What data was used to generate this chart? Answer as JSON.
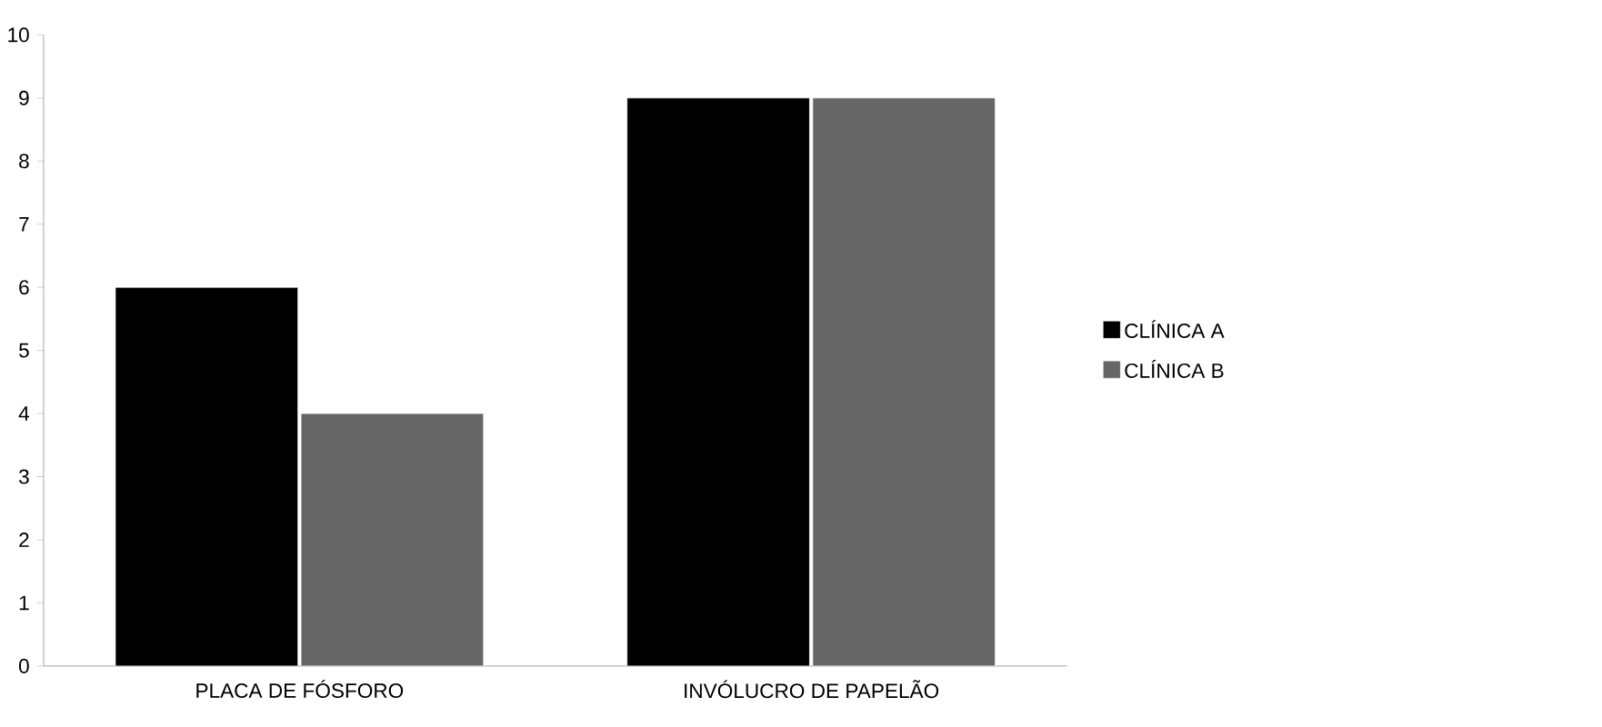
{
  "chart_data": {
    "type": "bar",
    "categories": [
      "PLACA DE FÓSFORO",
      "INVÓLUCRO DE PAPELÃO"
    ],
    "series": [
      {
        "name": "CLÍNICA  A",
        "color": "#000000",
        "values": [
          6,
          9
        ]
      },
      {
        "name": "CLÍNICA B",
        "color": "#666666",
        "values": [
          4,
          9
        ]
      }
    ],
    "ylim": [
      0,
      10
    ],
    "yticks": [
      0,
      1,
      2,
      3,
      4,
      5,
      6,
      7,
      8,
      9,
      10
    ],
    "grid": false,
    "legend": "right"
  }
}
